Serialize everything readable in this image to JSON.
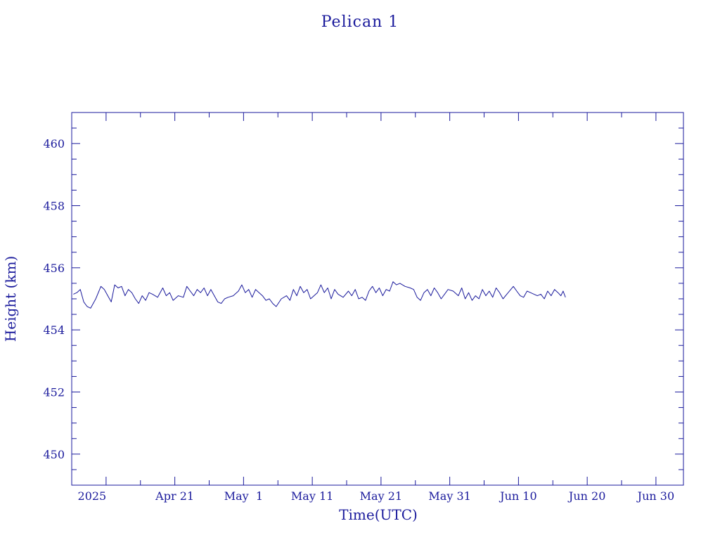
{
  "colors": {
    "ink": "#1a1a9c",
    "background": "#ffffff"
  },
  "chart_data": {
    "type": "line",
    "title": "Pelican 1",
    "xlabel": "Time(UTC)",
    "ylabel": "Height (km)",
    "x_axis": {
      "kind": "date",
      "range": [
        "2025-04-06",
        "2025-07-04"
      ],
      "major_ticks": [
        "2025-04-11",
        "2025-04-21",
        "2025-05-01",
        "2025-05-11",
        "2025-05-21",
        "2025-05-31",
        "2025-06-10",
        "2025-06-20",
        "2025-06-30"
      ],
      "tick_labels": [
        "2025",
        "Apr 21",
        "May  1",
        "May 11",
        "May 21",
        "May 31",
        "Jun 10",
        "Jun 20",
        "Jun 30"
      ],
      "minor_ticks_per_major": 2
    },
    "y_axis": {
      "range": [
        449,
        461
      ],
      "major_ticks": [
        450,
        452,
        454,
        456,
        458,
        460
      ],
      "tick_labels": [
        "450",
        "452",
        "454",
        "456",
        "458",
        "460"
      ],
      "minor_step": 0.5
    },
    "grid": false,
    "series": [
      {
        "x": [
          "2025-04-06",
          "2025-04-06",
          "2025-04-07",
          "2025-04-07",
          "2025-04-08",
          "2025-04-08",
          "2025-04-09",
          "2025-04-10",
          "2025-04-10",
          "2025-04-11",
          "2025-04-11",
          "2025-04-12",
          "2025-04-12",
          "2025-04-13",
          "2025-04-13",
          "2025-04-14",
          "2025-04-14",
          "2025-04-15",
          "2025-04-15",
          "2025-04-16",
          "2025-04-16",
          "2025-04-17",
          "2025-04-17",
          "2025-04-18",
          "2025-04-19",
          "2025-04-19",
          "2025-04-20",
          "2025-04-20",
          "2025-04-21",
          "2025-04-22",
          "2025-04-22",
          "2025-04-23",
          "2025-04-23",
          "2025-04-24",
          "2025-04-24",
          "2025-04-25",
          "2025-04-25",
          "2025-04-26",
          "2025-04-26",
          "2025-04-27",
          "2025-04-27",
          "2025-04-28",
          "2025-04-28",
          "2025-04-29",
          "2025-04-30",
          "2025-04-30",
          "2025-05-01",
          "2025-05-01",
          "2025-05-02",
          "2025-05-02",
          "2025-05-03",
          "2025-05-03",
          "2025-05-04",
          "2025-05-04",
          "2025-05-05",
          "2025-05-05",
          "2025-05-06",
          "2025-05-07",
          "2025-05-07",
          "2025-05-08",
          "2025-05-08",
          "2025-05-09",
          "2025-05-09",
          "2025-05-10",
          "2025-05-10",
          "2025-05-11",
          "2025-05-11",
          "2025-05-12",
          "2025-05-12",
          "2025-05-13",
          "2025-05-13",
          "2025-05-14",
          "2025-05-14",
          "2025-05-15",
          "2025-05-16",
          "2025-05-16",
          "2025-05-17",
          "2025-05-17",
          "2025-05-18",
          "2025-05-18",
          "2025-05-19",
          "2025-05-19",
          "2025-05-20",
          "2025-05-20",
          "2025-05-21",
          "2025-05-21",
          "2025-05-22",
          "2025-05-22",
          "2025-05-23",
          "2025-05-23",
          "2025-05-24",
          "2025-05-25",
          "2025-05-25",
          "2025-05-26",
          "2025-05-26",
          "2025-05-27",
          "2025-05-27",
          "2025-05-28",
          "2025-05-28",
          "2025-05-29",
          "2025-05-29",
          "2025-05-30",
          "2025-05-30",
          "2025-05-31",
          "2025-06-01",
          "2025-06-01",
          "2025-06-02",
          "2025-06-02",
          "2025-06-03",
          "2025-06-03",
          "2025-06-04",
          "2025-06-04",
          "2025-06-05",
          "2025-06-05",
          "2025-06-06",
          "2025-06-06",
          "2025-06-07",
          "2025-06-07",
          "2025-06-08",
          "2025-06-09",
          "2025-06-09",
          "2025-06-10",
          "2025-06-10",
          "2025-06-11",
          "2025-06-11",
          "2025-06-12",
          "2025-06-12",
          "2025-06-13",
          "2025-06-13",
          "2025-06-14",
          "2025-06-14",
          "2025-06-15",
          "2025-06-15",
          "2025-06-16",
          "2025-06-16",
          "2025-06-16"
        ],
        "y": [
          455.15,
          455.2,
          455.3,
          454.9,
          454.75,
          454.7,
          455.0,
          455.4,
          455.3,
          455.1,
          454.9,
          455.45,
          455.35,
          455.4,
          455.1,
          455.3,
          455.2,
          455.0,
          454.85,
          455.1,
          454.95,
          455.2,
          455.15,
          455.05,
          455.35,
          455.1,
          455.2,
          454.95,
          455.1,
          455.05,
          455.4,
          455.25,
          455.1,
          455.3,
          455.2,
          455.35,
          455.1,
          455.3,
          455.1,
          454.9,
          454.85,
          455.0,
          455.05,
          455.1,
          455.25,
          455.45,
          455.2,
          455.3,
          455.05,
          455.3,
          455.2,
          455.1,
          454.95,
          455.0,
          454.85,
          454.75,
          455.0,
          455.1,
          454.95,
          455.3,
          455.1,
          455.4,
          455.2,
          455.3,
          455.0,
          455.1,
          455.2,
          455.45,
          455.2,
          455.35,
          455.0,
          455.3,
          455.15,
          455.05,
          455.25,
          455.1,
          455.3,
          455.0,
          455.05,
          454.95,
          455.25,
          455.4,
          455.2,
          455.35,
          455.1,
          455.3,
          455.25,
          455.55,
          455.45,
          455.5,
          455.4,
          455.35,
          455.3,
          455.05,
          454.95,
          455.2,
          455.3,
          455.1,
          455.35,
          455.2,
          455.0,
          455.15,
          455.3,
          455.25,
          455.1,
          455.35,
          455.0,
          455.2,
          454.95,
          455.1,
          455.0,
          455.3,
          455.1,
          455.25,
          455.05,
          455.35,
          455.2,
          455.0,
          455.2,
          455.4,
          455.25,
          455.1,
          455.05,
          455.25,
          455.2,
          455.15,
          455.1,
          455.15,
          455.0,
          455.25,
          455.1,
          455.3,
          455.2,
          455.1,
          455.25,
          455.05
        ]
      }
    ]
  }
}
